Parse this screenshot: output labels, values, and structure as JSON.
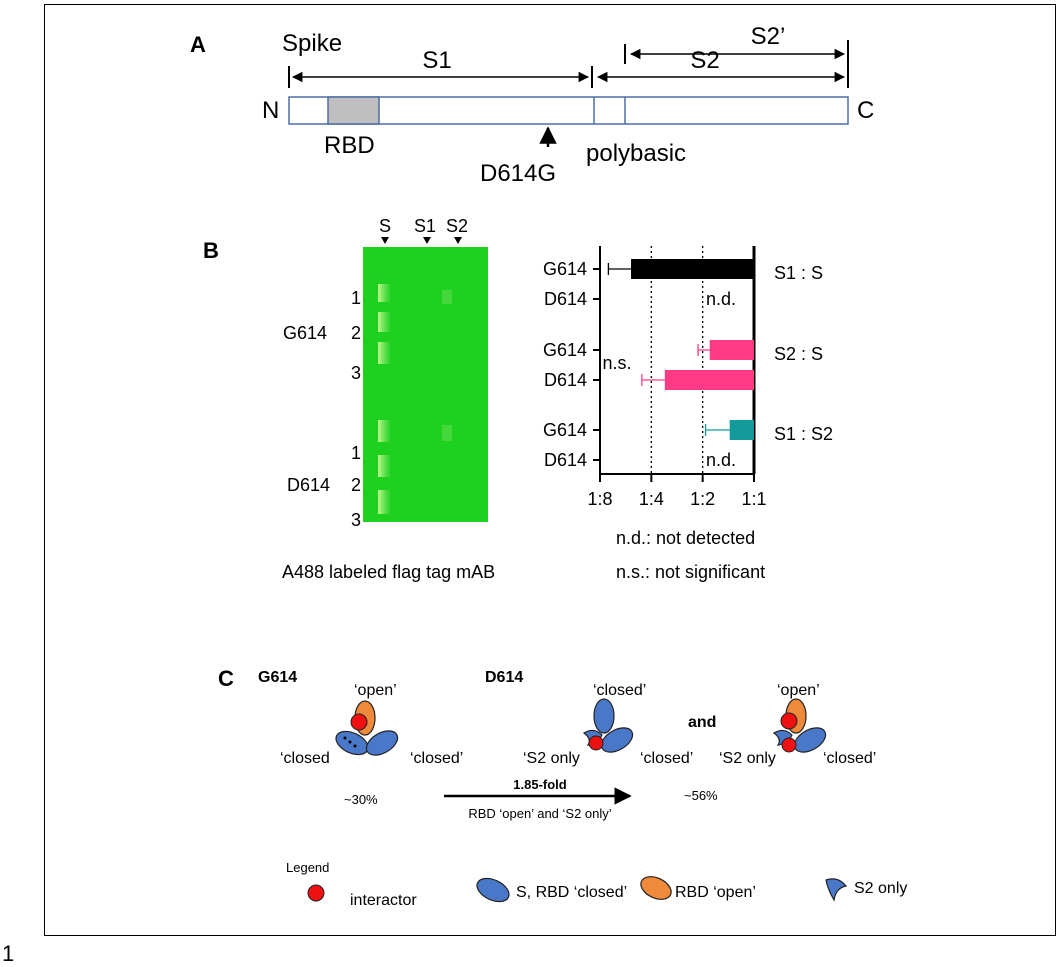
{
  "page_number": "1",
  "panel_a": {
    "panel_label": "A",
    "protein": "Spike",
    "s1_label": "S1",
    "s2_label": "S2",
    "s2prime_label": "S2’",
    "n_term": "N",
    "c_term": "C",
    "rbd_label": "RBD",
    "mutation_label": "D614G",
    "polybasic_label": "polybasic",
    "colors": {
      "domain_outline": "#4a6fa5",
      "rbd_fill": "#bfbfbf"
    }
  },
  "panel_b": {
    "panel_label": "B",
    "gel": {
      "lane_markers": [
        "S",
        "S1",
        "S2"
      ],
      "groups": [
        {
          "name": "G614",
          "replicates": [
            "1",
            "2",
            "3"
          ]
        },
        {
          "name": "D614",
          "replicates": [
            "1",
            "2",
            "3"
          ]
        }
      ],
      "caption": "A488 labeled flag tag mAB",
      "colors": {
        "background": "#1fd11f",
        "band": "#b9f07a"
      }
    },
    "legend_notes": [
      "n.d.: not detected",
      "n.s.: not significant"
    ]
  },
  "chart_data": {
    "type": "bar",
    "orientation": "horizontal",
    "x_scale": "log2",
    "x_ticks": [
      "1:8",
      "1:4",
      "1:2",
      "1:1"
    ],
    "x_tick_values": [
      0.125,
      0.25,
      0.5,
      1
    ],
    "xlim": [
      0.125,
      1
    ],
    "reference_lines": [
      0.25,
      0.5
    ],
    "groups": [
      {
        "label": "S1 : S",
        "color": "#000000",
        "bars": [
          {
            "category": "G614",
            "value": 0.19,
            "error_low": 0.14,
            "annotation": ""
          },
          {
            "category": "D614",
            "value": null,
            "annotation": "n.d."
          }
        ]
      },
      {
        "label": "S2 : S",
        "color": "#ff3b86",
        "bars": [
          {
            "category": "G614",
            "value": 0.55,
            "error_low": 0.47,
            "annotation": ""
          },
          {
            "category": "D614",
            "value": 0.3,
            "error_low": 0.22,
            "annotation": ""
          }
        ],
        "comparison": "n.s."
      },
      {
        "label": "S1 : S2",
        "color": "#139a9a",
        "bars": [
          {
            "category": "G614",
            "value": 0.72,
            "error_low": 0.52,
            "annotation": ""
          },
          {
            "category": "D614",
            "value": null,
            "annotation": "n.d."
          }
        ]
      }
    ]
  },
  "panel_c": {
    "panel_label": "C",
    "g614": {
      "title": "G614",
      "open_label": "‘open’",
      "closed_left_label": "‘closed",
      "closed_right_label": "‘closed’",
      "percent": "~30%"
    },
    "d614": {
      "title": "D614",
      "percent": "~56%",
      "conj": "and",
      "model1": {
        "top_label": "‘closed’",
        "left_label": "‘S2 only",
        "right_label": "‘closed’"
      },
      "model2": {
        "top_label": "‘open’",
        "left_label": "‘S2 only",
        "right_label": "‘closed’"
      }
    },
    "arrow": {
      "fold_label": "1.85-fold",
      "caption": "RBD ‘open’ and ‘S2 only’"
    },
    "legend": {
      "title": "Legend",
      "interactor": "interactor",
      "closed": "S, RBD ‘closed’",
      "open": "RBD ‘open’",
      "s2only": "S2 only"
    },
    "colors": {
      "closed": "#4a78c8",
      "open": "#ee8a3a",
      "interactor": "#ee1111"
    }
  }
}
